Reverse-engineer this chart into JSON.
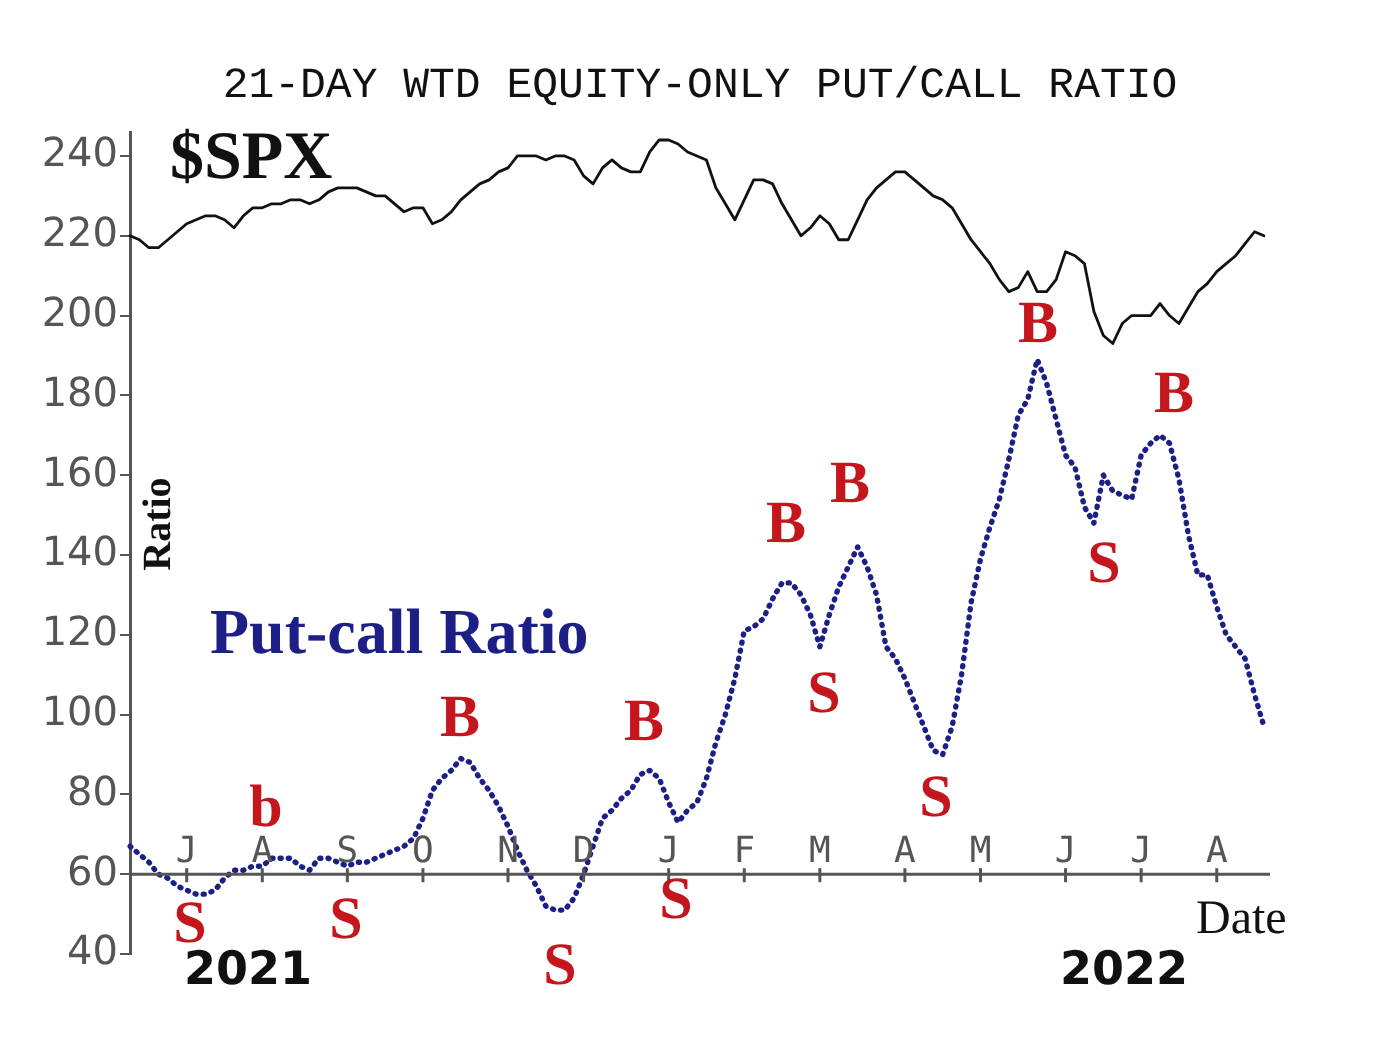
{
  "chart_data": {
    "type": "line",
    "title": "21-DAY WTD EQUITY-ONLY PUT/CALL RATIO",
    "xlabel": "Date",
    "ylabel": "Ratio",
    "categories": [
      null,
      null,
      null,
      null,
      null,
      null,
      "J",
      null,
      null,
      null,
      null,
      null,
      null,
      null,
      "A",
      null,
      null,
      null,
      null,
      null,
      null,
      null,
      null,
      "S",
      null,
      null,
      null,
      null,
      null,
      null,
      null,
      "O",
      null,
      null,
      null,
      null,
      null,
      null,
      null,
      null,
      "N",
      null,
      null,
      null,
      null,
      null,
      null,
      null,
      "D",
      null,
      null,
      null,
      null,
      null,
      null,
      null,
      null,
      "J",
      null,
      null,
      null,
      null,
      null,
      null,
      null,
      "F",
      null,
      null,
      null,
      null,
      null,
      null,
      null,
      "M",
      null,
      null,
      null,
      null,
      null,
      null,
      null,
      null,
      "A",
      null,
      null,
      null,
      null,
      null,
      null,
      null,
      "M",
      null,
      null,
      null,
      null,
      null,
      null,
      null,
      null,
      "J",
      null,
      null,
      null,
      null,
      null,
      null,
      null,
      "J",
      null,
      null,
      null,
      null,
      null,
      null,
      null,
      "A",
      null,
      null,
      null,
      null,
      null
    ],
    "ylim": [
      40,
      246
    ],
    "yticks": [
      40,
      60,
      80,
      100,
      120,
      140,
      160,
      180,
      200,
      220,
      240
    ],
    "series": [
      {
        "name": "$SPX",
        "color": "#111111",
        "line_style": "solid",
        "values": [
          220,
          219,
          217,
          217,
          219,
          221,
          223,
          224,
          225,
          225,
          224,
          222,
          225,
          227,
          227,
          228,
          228,
          229,
          229,
          228,
          229,
          231,
          232,
          232,
          232,
          231,
          230,
          230,
          228,
          226,
          227,
          227,
          223,
          224,
          226,
          229,
          231,
          233,
          234,
          236,
          237,
          240,
          240,
          240,
          239,
          240,
          240,
          239,
          235,
          233,
          237,
          239,
          237,
          236,
          236,
          241,
          244,
          244,
          243,
          241,
          240,
          239,
          232,
          228,
          224,
          229,
          234,
          234,
          233,
          228,
          224,
          220,
          222,
          225,
          223,
          219,
          219,
          224,
          229,
          232,
          234,
          236,
          236,
          234,
          232,
          230,
          229,
          227,
          223,
          219,
          216,
          213,
          209,
          206,
          207,
          211,
          206,
          206,
          209,
          216,
          215,
          213,
          201,
          195,
          193,
          198,
          200,
          200,
          200,
          203,
          200,
          198,
          202,
          206,
          208,
          211,
          213,
          215,
          218,
          221,
          220
        ]
      },
      {
        "name": "Put-call Ratio",
        "color": "#1c1f86",
        "line_style": "dotted",
        "values": [
          67,
          65,
          63,
          60,
          59,
          57,
          56,
          55,
          55,
          56,
          59,
          61,
          61,
          62,
          62,
          64,
          64,
          64,
          62,
          61,
          64,
          64,
          63,
          62,
          63,
          63,
          64,
          65,
          66,
          67,
          69,
          74,
          81,
          84,
          86,
          89,
          88,
          84,
          81,
          77,
          72,
          66,
          61,
          57,
          52,
          51,
          51,
          54,
          60,
          67,
          74,
          76,
          79,
          81,
          85,
          86,
          84,
          78,
          73,
          76,
          78,
          84,
          93,
          100,
          109,
          121,
          122,
          124,
          129,
          133,
          133,
          130,
          125,
          117,
          125,
          132,
          137,
          142,
          137,
          130,
          117,
          114,
          109,
          103,
          97,
          91,
          90,
          97,
          110,
          128,
          139,
          147,
          154,
          164,
          175,
          179,
          189,
          183,
          174,
          165,
          162,
          152,
          148,
          160,
          156,
          155,
          154,
          165,
          168,
          170,
          168,
          159,
          145,
          135,
          135,
          127,
          120,
          117,
          114,
          105,
          97
        ]
      }
    ],
    "annotations": [
      "S",
      "b",
      "S",
      "B",
      "S",
      "B",
      "S",
      "B",
      "S",
      "B",
      "S",
      "B",
      "S",
      "B",
      "2021",
      "2022"
    ]
  }
}
